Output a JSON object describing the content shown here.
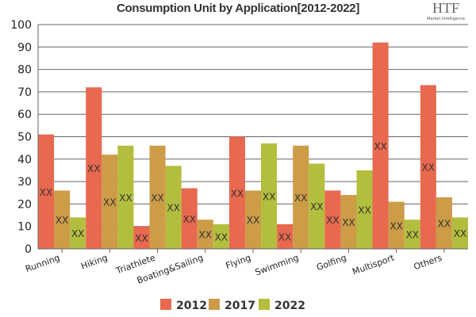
{
  "chart_data": {
    "type": "bar",
    "title": "Consumption Unit by  Application[2012-2022]",
    "categories": [
      "Running",
      "Hiking",
      "Triathlete",
      "Boating&Sailing",
      "Flying",
      "Swimming",
      "Golfing",
      "Multisport",
      "Others"
    ],
    "series": [
      {
        "name": "2012",
        "color": "#E8694F",
        "values": [
          51,
          72,
          10,
          27,
          50,
          11,
          26,
          92,
          73
        ]
      },
      {
        "name": "2017",
        "color": "#CC9C47",
        "values": [
          26,
          42,
          46,
          13,
          26,
          46,
          24,
          21,
          23
        ]
      },
      {
        "name": "2022",
        "color": "#B3BE3E",
        "values": [
          14,
          46,
          37,
          11,
          47,
          38,
          35,
          13,
          14
        ]
      }
    ],
    "data_label": "XX",
    "ylim": [
      0,
      100
    ],
    "yticks": [
      0,
      10,
      20,
      30,
      40,
      50,
      60,
      70,
      80,
      90,
      100
    ],
    "grid": true,
    "legend": "bottom"
  },
  "logo": {
    "text": "HTF",
    "subtext": "Market Intelligence"
  }
}
